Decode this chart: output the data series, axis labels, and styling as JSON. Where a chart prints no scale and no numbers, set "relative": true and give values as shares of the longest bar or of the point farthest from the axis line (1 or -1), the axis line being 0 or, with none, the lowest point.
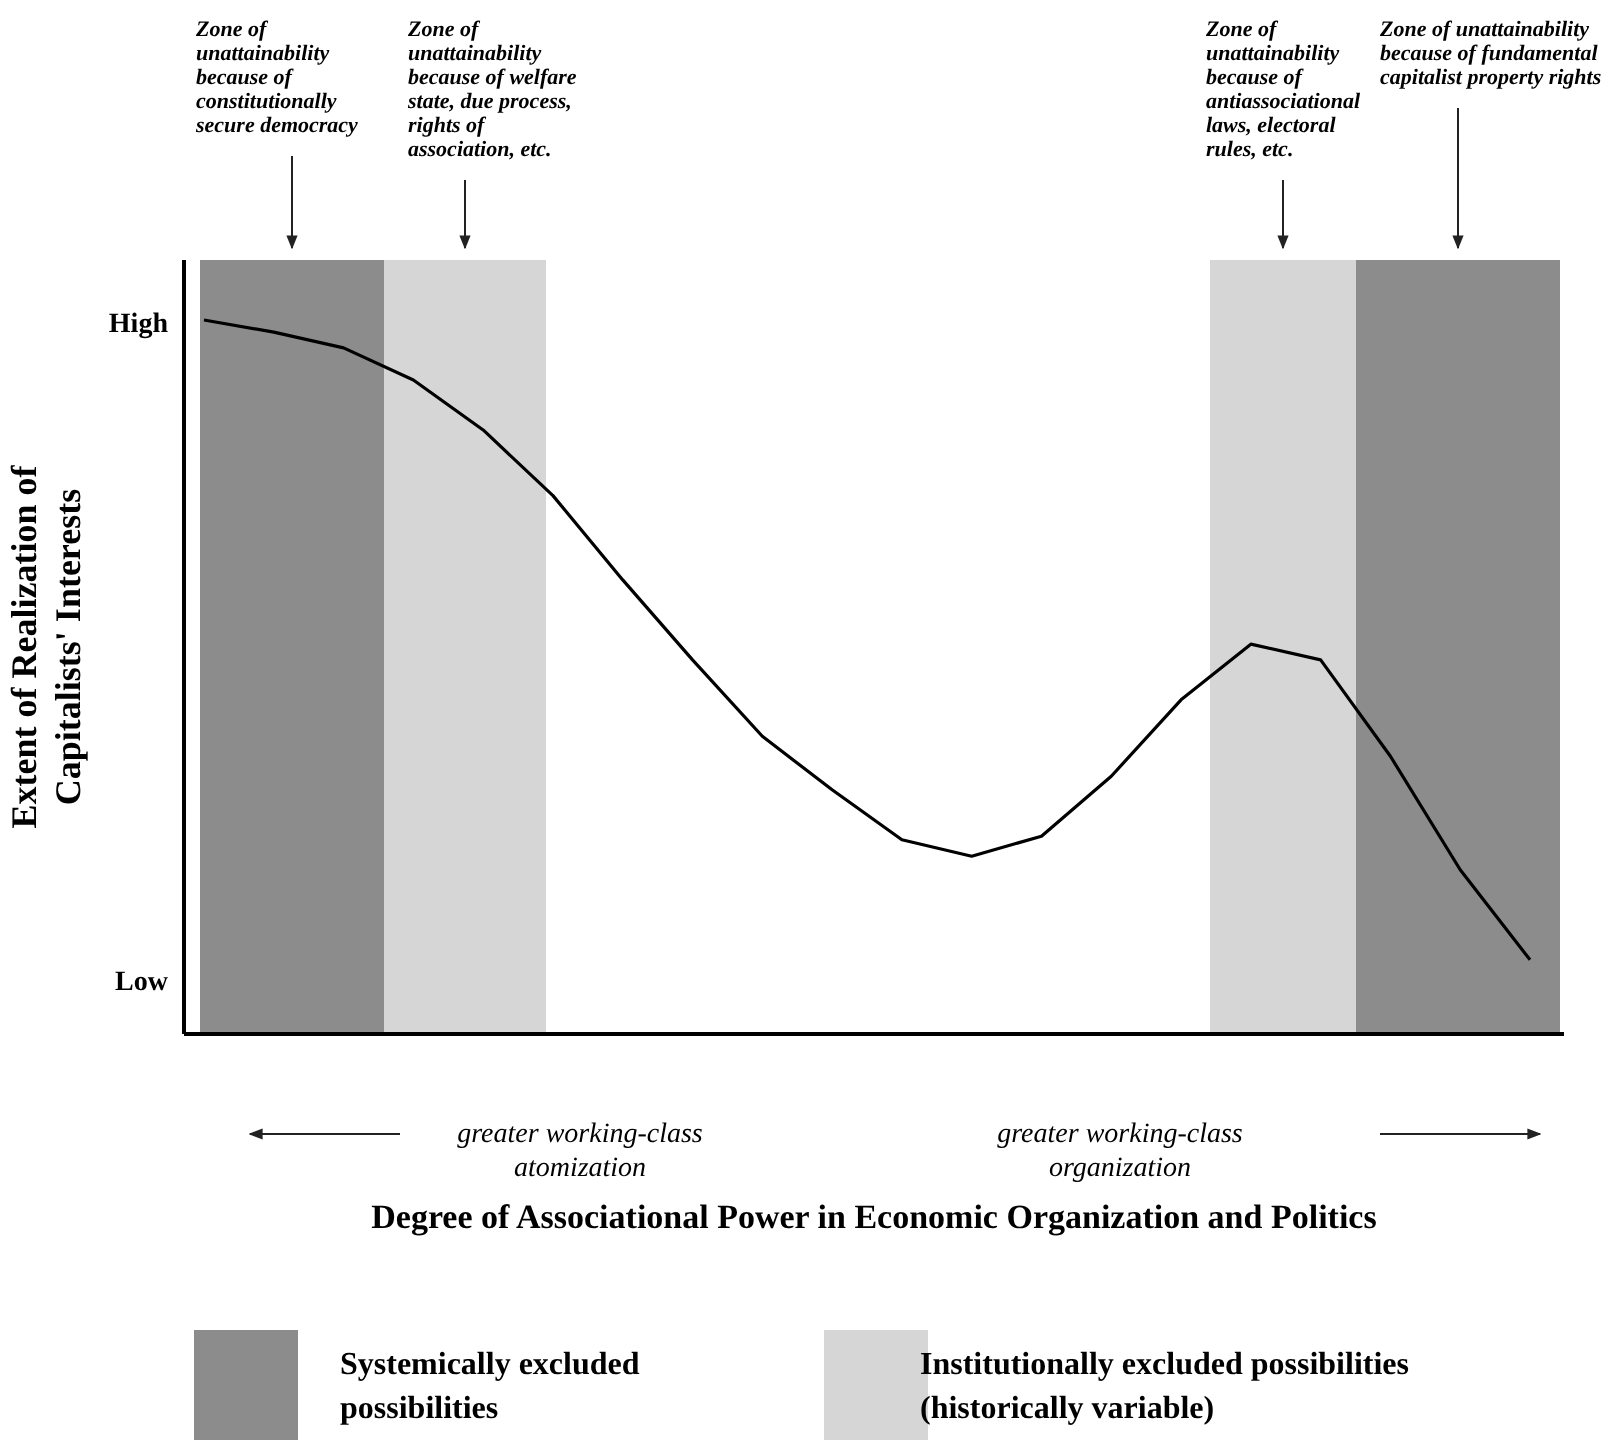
{
  "chart_data": {
    "type": "line",
    "relative": true,
    "xlabel": "Degree of Associational Power in Economic Organization and Politics",
    "ylabel": "Extent of Realization of Capitalists' Interests",
    "categories": [
      null,
      null,
      null,
      null,
      null,
      null,
      null,
      null,
      null,
      null,
      null,
      null,
      null,
      null,
      null,
      null,
      null,
      null,
      null,
      null
    ],
    "series": [
      {
        "color": "#000000",
        "values": [
          1.0,
          0.983,
          0.961,
          0.916,
          0.846,
          0.754,
          0.636,
          0.524,
          0.417,
          0.342,
          0.272,
          0.249,
          0.277,
          0.361,
          0.468,
          0.546,
          0.524,
          0.389,
          0.23,
          0.104
        ]
      }
    ],
    "annotations": [
      "greater working-class atomization",
      "greater working-class organization",
      "Systemically excluded possibilities",
      "Institutionally excluded possibilities (historically variable)",
      "High",
      "Low",
      "Zone of unattainability because of constitutionally secure democracy",
      "Zone of unattainability because of welfare state, due process, rights of association, etc.",
      "Zone of unattainability because of antiassociational laws, electoral rules, etc.",
      "Zone of unattainability because of fundamental capitalist property rights"
    ],
    "line_style": "solid",
    "marker": "none"
  }
}
